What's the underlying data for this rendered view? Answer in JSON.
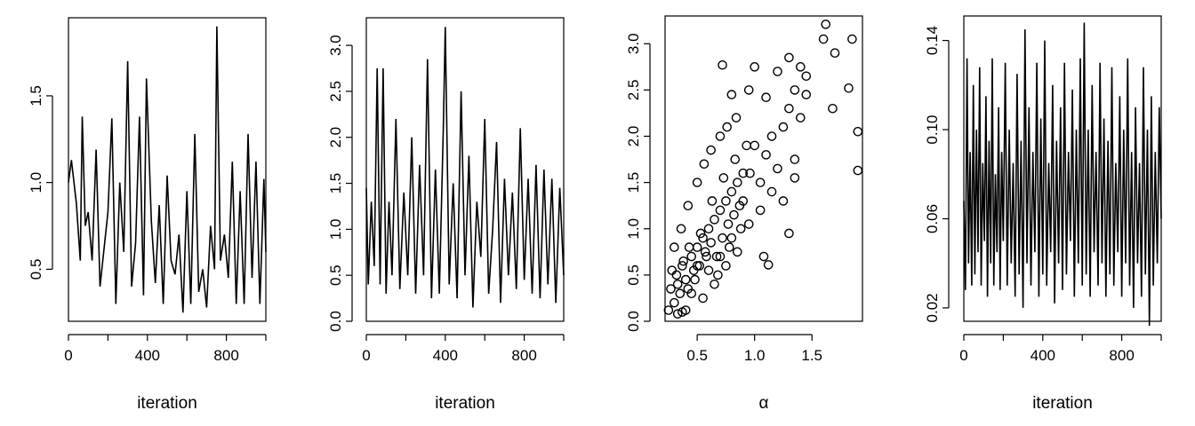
{
  "chart_data": [
    {
      "type": "line",
      "xlabel": "iteration",
      "ylabel": "",
      "xlim": [
        0,
        1000
      ],
      "ylim": [
        0.2,
        1.95
      ],
      "x_ticks": [
        0,
        200,
        400,
        600,
        800,
        1000
      ],
      "x_tick_labels": [
        "0",
        "",
        "400",
        "",
        "800",
        ""
      ],
      "y_ticks": [
        0.5,
        1.0,
        1.5
      ],
      "y_tick_labels": [
        "0.5",
        "1.0",
        "1.5"
      ],
      "grid": false,
      "series": [
        {
          "x": [
            0,
            15,
            40,
            60,
            70,
            85,
            100,
            120,
            140,
            160,
            200,
            220,
            240,
            260,
            280,
            300,
            320,
            340,
            360,
            380,
            395,
            420,
            440,
            460,
            480,
            500,
            520,
            540,
            560,
            580,
            600,
            620,
            640,
            660,
            680,
            700,
            720,
            740,
            752,
            770,
            790,
            810,
            830,
            850,
            870,
            890,
            910,
            930,
            950,
            970,
            990,
            1000
          ],
          "y": [
            1.0,
            1.13,
            0.88,
            0.55,
            1.38,
            0.75,
            0.83,
            0.55,
            1.19,
            0.4,
            0.83,
            1.37,
            0.3,
            1.0,
            0.6,
            1.7,
            0.4,
            0.65,
            1.38,
            0.35,
            1.6,
            0.78,
            0.42,
            0.87,
            0.3,
            1.04,
            0.55,
            0.47,
            0.7,
            0.25,
            0.95,
            0.3,
            1.28,
            0.37,
            0.5,
            0.28,
            0.75,
            0.5,
            1.9,
            0.55,
            0.7,
            0.45,
            1.12,
            0.3,
            0.95,
            0.3,
            1.28,
            0.45,
            1.12,
            0.3,
            1.02,
            0.6
          ]
        }
      ]
    },
    {
      "type": "line",
      "xlabel": "iteration",
      "ylabel": "",
      "xlim": [
        0,
        1000
      ],
      "ylim": [
        0.0,
        3.3
      ],
      "x_ticks": [
        0,
        200,
        400,
        600,
        800,
        1000
      ],
      "x_tick_labels": [
        "0",
        "",
        "400",
        "",
        "800",
        ""
      ],
      "y_ticks": [
        0.0,
        0.5,
        1.0,
        1.5,
        2.0,
        2.5,
        3.0
      ],
      "y_tick_labels": [
        "0.0",
        "0.5",
        "1.0",
        "1.5",
        "2.0",
        "2.5",
        "3.0"
      ],
      "grid": false,
      "series": [
        {
          "x": [
            0,
            10,
            25,
            40,
            55,
            70,
            85,
            100,
            115,
            130,
            150,
            170,
            190,
            210,
            230,
            250,
            270,
            290,
            310,
            330,
            350,
            370,
            390,
            400,
            420,
            440,
            460,
            480,
            500,
            520,
            540,
            560,
            580,
            600,
            620,
            640,
            660,
            680,
            700,
            720,
            740,
            760,
            780,
            800,
            820,
            840,
            860,
            880,
            900,
            920,
            940,
            960,
            980,
            1000
          ],
          "y": [
            1.45,
            0.4,
            1.3,
            0.6,
            2.75,
            0.4,
            2.75,
            0.3,
            1.3,
            0.5,
            2.2,
            0.35,
            1.4,
            0.5,
            2.0,
            0.3,
            1.7,
            0.5,
            2.85,
            0.25,
            1.65,
            0.3,
            2.1,
            3.2,
            0.4,
            1.5,
            0.25,
            2.5,
            0.5,
            1.8,
            0.15,
            1.3,
            0.7,
            2.2,
            0.3,
            1.0,
            1.95,
            0.2,
            1.55,
            0.5,
            1.4,
            0.35,
            2.1,
            0.45,
            1.55,
            0.3,
            1.7,
            0.25,
            1.65,
            0.4,
            1.55,
            0.2,
            1.45,
            0.5
          ]
        }
      ]
    },
    {
      "type": "scatter",
      "xlabel": "α",
      "ylabel": "",
      "xlim": [
        0.22,
        1.94
      ],
      "ylim": [
        0.0,
        3.3
      ],
      "x_ticks": [
        0.5,
        1.0,
        1.5
      ],
      "x_tick_labels": [
        "0.5",
        "1.0",
        "1.5"
      ],
      "y_ticks": [
        0.0,
        0.5,
        1.0,
        1.5,
        2.0,
        2.5,
        3.0
      ],
      "y_tick_labels": [
        "0.0",
        "0.5",
        "1.0",
        "1.5",
        "2.0",
        "2.5",
        "3.0"
      ],
      "grid": false,
      "series": [
        {
          "x": [
            0.25,
            0.27,
            0.3,
            0.32,
            0.35,
            0.37,
            0.4,
            0.42,
            0.45,
            0.47,
            0.5,
            0.52,
            0.55,
            0.57,
            0.6,
            0.62,
            0.65,
            0.67,
            0.7,
            0.72,
            0.75,
            0.77,
            0.8,
            0.82,
            0.85,
            0.87,
            0.9,
            0.28,
            0.33,
            0.38,
            0.43,
            0.48,
            0.53,
            0.58,
            0.63,
            0.68,
            0.73,
            0.78,
            0.83,
            0.88,
            0.93,
            0.3,
            0.36,
            0.42,
            0.5,
            0.56,
            0.62,
            0.7,
            0.76,
            0.84,
            0.9,
            0.96,
            1.0,
            1.05,
            1.1,
            1.15,
            1.2,
            1.25,
            1.3,
            1.35,
            1.4,
            1.45,
            0.45,
            0.5,
            0.55,
            0.6,
            0.65,
            0.7,
            0.75,
            0.8,
            0.85,
            0.95,
            1.05,
            1.15,
            1.25,
            1.35,
            0.72,
            0.8,
            0.95,
            1.0,
            1.1,
            1.2,
            1.3,
            1.35,
            1.4,
            1.45,
            1.6,
            1.7,
            1.82,
            1.9,
            1.62,
            1.68,
            1.85,
            1.9,
            0.33,
            0.37,
            0.4,
            1.12,
            1.08,
            1.3
          ],
          "y": [
            0.12,
            0.35,
            0.2,
            0.5,
            0.3,
            0.6,
            0.45,
            0.35,
            0.7,
            0.55,
            0.8,
            0.6,
            0.9,
            0.75,
            1.0,
            0.85,
            1.1,
            0.7,
            1.2,
            0.9,
            1.3,
            1.05,
            1.4,
            1.15,
            1.5,
            1.25,
            1.6,
            0.55,
            0.4,
            0.65,
            0.8,
            0.45,
            0.95,
            0.7,
            1.3,
            0.5,
            1.55,
            0.8,
            1.75,
            1.0,
            1.9,
            0.8,
            1.0,
            1.25,
            1.5,
            1.7,
            1.85,
            2.0,
            2.1,
            2.2,
            1.3,
            1.6,
            1.9,
            1.5,
            1.8,
            2.0,
            1.65,
            2.1,
            2.3,
            1.75,
            2.2,
            2.45,
            0.3,
            0.6,
            0.25,
            0.55,
            0.4,
            0.7,
            0.6,
            0.9,
            0.75,
            1.05,
            1.2,
            1.4,
            1.3,
            1.55,
            2.77,
            2.45,
            2.5,
            2.75,
            2.42,
            2.7,
            2.85,
            2.5,
            2.75,
            2.65,
            3.05,
            2.9,
            2.52,
            1.63,
            3.21,
            2.3,
            3.05,
            2.05,
            0.08,
            0.1,
            0.12,
            0.61,
            0.7,
            0.95
          ]
        }
      ]
    },
    {
      "type": "line",
      "xlabel": "iteration",
      "ylabel": "",
      "xlim": [
        0,
        1000
      ],
      "ylim": [
        0.014,
        0.151
      ],
      "x_ticks": [
        0,
        200,
        400,
        600,
        800,
        1000
      ],
      "x_tick_labels": [
        "0",
        "",
        "400",
        "",
        "800",
        ""
      ],
      "y_ticks": [
        0.02,
        0.06,
        0.1,
        0.14
      ],
      "y_tick_labels": [
        "0.02",
        "0.06",
        "0.10",
        "0.14"
      ],
      "grid": false,
      "series": [
        {
          "x": [
            0,
            8,
            16,
            24,
            32,
            40,
            48,
            56,
            64,
            72,
            80,
            88,
            96,
            104,
            112,
            120,
            128,
            136,
            144,
            152,
            160,
            168,
            176,
            184,
            192,
            200,
            210,
            220,
            230,
            240,
            250,
            260,
            270,
            280,
            290,
            300,
            310,
            320,
            330,
            340,
            350,
            360,
            370,
            380,
            390,
            400,
            410,
            420,
            430,
            440,
            450,
            460,
            470,
            480,
            490,
            500,
            510,
            520,
            530,
            540,
            550,
            560,
            570,
            580,
            590,
            600,
            610,
            620,
            630,
            640,
            650,
            660,
            670,
            680,
            690,
            700,
            710,
            720,
            730,
            740,
            750,
            760,
            770,
            780,
            790,
            800,
            810,
            820,
            830,
            840,
            850,
            860,
            870,
            880,
            890,
            900,
            910,
            920,
            930,
            940,
            950,
            960,
            970,
            980,
            990,
            1000
          ],
          "y": [
            0.068,
            0.028,
            0.132,
            0.04,
            0.09,
            0.03,
            0.12,
            0.035,
            0.1,
            0.045,
            0.128,
            0.03,
            0.085,
            0.05,
            0.115,
            0.025,
            0.095,
            0.04,
            0.132,
            0.03,
            0.08,
            0.045,
            0.11,
            0.028,
            0.09,
            0.05,
            0.13,
            0.03,
            0.1,
            0.04,
            0.085,
            0.025,
            0.125,
            0.035,
            0.095,
            0.02,
            0.145,
            0.04,
            0.11,
            0.03,
            0.09,
            0.045,
            0.13,
            0.025,
            0.105,
            0.035,
            0.14,
            0.03,
            0.085,
            0.045,
            0.12,
            0.022,
            0.095,
            0.04,
            0.11,
            0.028,
            0.13,
            0.035,
            0.09,
            0.05,
            0.118,
            0.025,
            0.1,
            0.04,
            0.132,
            0.03,
            0.148,
            0.035,
            0.1,
            0.025,
            0.12,
            0.045,
            0.09,
            0.03,
            0.13,
            0.04,
            0.105,
            0.025,
            0.095,
            0.035,
            0.128,
            0.03,
            0.085,
            0.045,
            0.115,
            0.025,
            0.1,
            0.04,
            0.132,
            0.03,
            0.09,
            0.02,
            0.11,
            0.04,
            0.085,
            0.025,
            0.128,
            0.035,
            0.1,
            0.012,
            0.115,
            0.03,
            0.09,
            0.04,
            0.11,
            0.06
          ]
        }
      ]
    }
  ]
}
